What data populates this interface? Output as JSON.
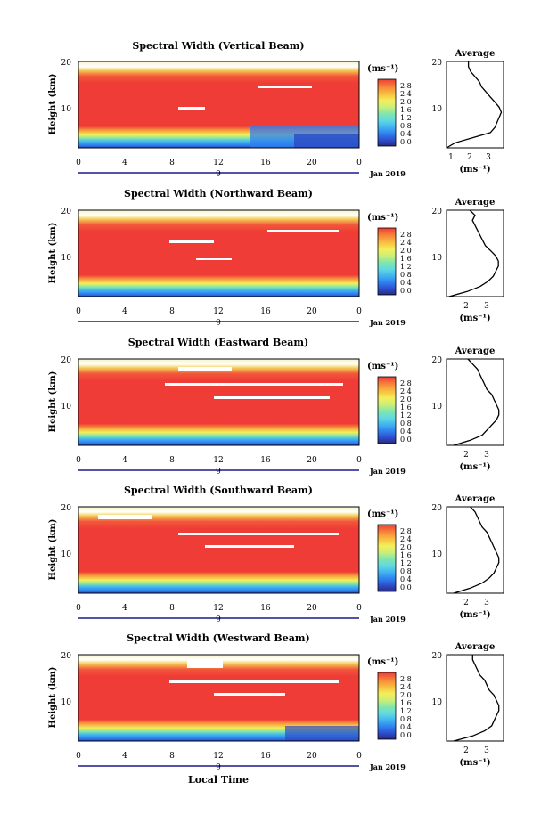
{
  "panels": [
    {
      "title": "Spectral Width (Vertical Beam)",
      "avg_ticks": [
        "1",
        "2",
        "3"
      ]
    },
    {
      "title": "Spectral Width (Northward Beam)",
      "avg_ticks": [
        "2",
        "3"
      ]
    },
    {
      "title": "Spectral Width (Eastward Beam)",
      "avg_ticks": [
        "2",
        "3"
      ]
    },
    {
      "title": "Spectral Width (Southward Beam)",
      "avg_ticks": [
        "2",
        "3"
      ]
    },
    {
      "title": "Spectral Width (Westward Beam)",
      "avg_ticks": [
        "2",
        "3"
      ]
    }
  ],
  "common": {
    "ylabel": "Height (km)",
    "x_ticks": [
      "0",
      "4",
      "8",
      "12",
      "16",
      "20",
      "0"
    ],
    "day_label": "9",
    "month_label": "Jan 2019",
    "xlabel": "Local Time",
    "y_ticks": [
      "20",
      "10"
    ],
    "cbar_unit": "(ms⁻¹)",
    "cbar_ticks": [
      "2.8",
      "2.4",
      "2.0",
      "1.6",
      "1.2",
      "0.8",
      "0.4",
      "0.0"
    ],
    "avg_title": "Average",
    "avg_unit": "(ms⁻¹)"
  },
  "chart_data": {
    "type": "heatmap",
    "x_range_hours": [
      0,
      24
    ],
    "y_range_km": [
      3,
      20
    ],
    "colorbar_range_ms": [
      0.0,
      3.0
    ],
    "colormap": [
      "#2a2a7a",
      "#2d49c6",
      "#2f7df0",
      "#3fb2f0",
      "#5fd8e2",
      "#7ee6b0",
      "#c8ef7a",
      "#f3ef5a",
      "#f9c042",
      "#f78a3a",
      "#f2583a",
      "#f03c36"
    ],
    "average_profile_height_km": [
      3,
      4,
      5,
      6,
      7,
      8,
      9,
      10,
      11,
      12,
      13,
      14,
      15,
      16,
      17,
      18,
      19,
      20
    ],
    "average_profiles": [
      {
        "beam": "Vertical",
        "xlim": [
          1,
          3.6
        ],
        "values": [
          1.0,
          1.4,
          2.2,
          3.0,
          3.2,
          3.3,
          3.4,
          3.5,
          3.4,
          3.2,
          3.0,
          2.8,
          2.6,
          2.5,
          2.3,
          2.1,
          2.0,
          2.0
        ]
      },
      {
        "beam": "Northward",
        "xlim": [
          1.3,
          3.5
        ],
        "values": [
          1.4,
          2.1,
          2.6,
          2.9,
          3.1,
          3.2,
          3.3,
          3.3,
          3.2,
          3.0,
          2.8,
          2.7,
          2.6,
          2.5,
          2.4,
          2.3,
          2.4,
          2.2
        ]
      },
      {
        "beam": "Eastward",
        "xlim": [
          1.3,
          3.7
        ],
        "values": [
          1.6,
          2.3,
          2.8,
          3.0,
          3.2,
          3.4,
          3.5,
          3.5,
          3.4,
          3.3,
          3.2,
          3.0,
          2.9,
          2.8,
          2.7,
          2.6,
          2.4,
          2.2
        ]
      },
      {
        "beam": "Southward",
        "xlim": [
          1.3,
          3.7
        ],
        "values": [
          1.6,
          2.3,
          2.8,
          3.1,
          3.3,
          3.4,
          3.5,
          3.5,
          3.4,
          3.3,
          3.2,
          3.1,
          3.0,
          2.8,
          2.7,
          2.6,
          2.5,
          2.3
        ]
      },
      {
        "beam": "Westward",
        "xlim": [
          1.3,
          3.7
        ],
        "values": [
          1.6,
          2.4,
          2.9,
          3.2,
          3.3,
          3.4,
          3.5,
          3.5,
          3.4,
          3.3,
          3.1,
          3.0,
          2.9,
          2.7,
          2.6,
          2.5,
          2.4,
          2.4
        ]
      }
    ]
  }
}
